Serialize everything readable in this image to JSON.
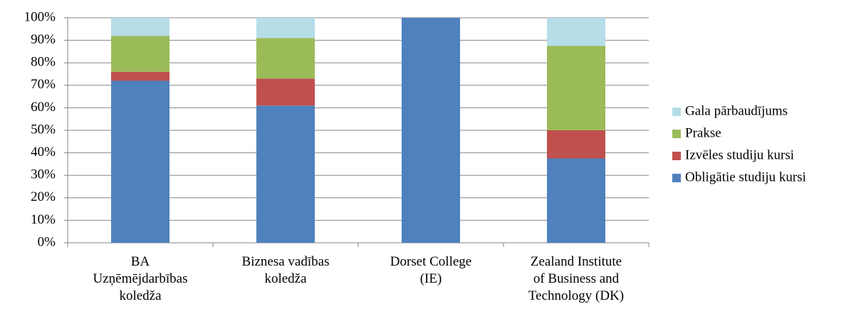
{
  "chart_data": {
    "type": "stacked_bar",
    "categories": [
      "BA\nUzņēmējdarbības\nkoledža",
      "Biznesa vadības\nkoledža",
      "Dorset College\n(IE)",
      "Zealand Institute\nof Business and\nTechnology (DK)"
    ],
    "series": [
      {
        "name": "Obligātie studiju kursi",
        "color": "#4f81bd",
        "values": [
          72,
          61,
          100,
          37.5
        ]
      },
      {
        "name": "Izvēles studiju kursi",
        "color": "#c0504d",
        "values": [
          4,
          12,
          0,
          12.5
        ]
      },
      {
        "name": "Prakse",
        "color": "#9bbb59",
        "values": [
          16,
          18,
          0,
          37.5
        ]
      },
      {
        "name": "Gala pārbaudījums",
        "color": "#b6dde8",
        "values": [
          8,
          9,
          0,
          12.5
        ]
      }
    ],
    "ylim": [
      0,
      100
    ],
    "yticks": [
      {
        "value": 0,
        "label": "0%"
      },
      {
        "value": 10,
        "label": "10%"
      },
      {
        "value": 20,
        "label": "20%"
      },
      {
        "value": 30,
        "label": "30%"
      },
      {
        "value": 40,
        "label": "40%"
      },
      {
        "value": 50,
        "label": "50%"
      },
      {
        "value": 60,
        "label": "60%"
      },
      {
        "value": 70,
        "label": "70%"
      },
      {
        "value": 80,
        "label": "80%"
      },
      {
        "value": 90,
        "label": "90%"
      },
      {
        "value": 100,
        "label": "100%"
      }
    ],
    "grid": true,
    "legend": "right"
  }
}
